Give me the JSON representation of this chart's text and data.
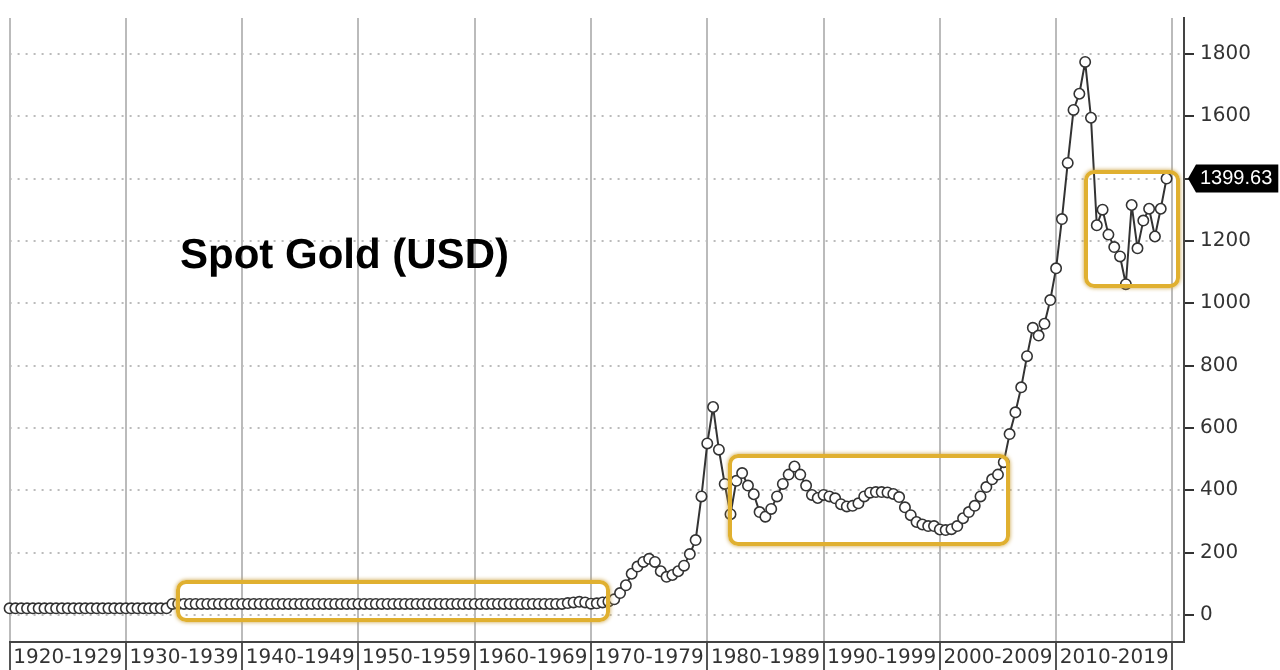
{
  "chart_data": {
    "type": "line",
    "title": "Spot Gold (USD)",
    "categories": [
      null,
      null,
      null,
      null,
      null,
      null,
      null,
      null,
      null,
      null,
      "1920-1929",
      null,
      null,
      null,
      null,
      null,
      null,
      null,
      null,
      null,
      null,
      null,
      null,
      null,
      null,
      null,
      null,
      null,
      null,
      null,
      "1930-1939",
      null,
      null,
      null,
      null,
      null,
      null,
      null,
      null,
      null,
      null,
      null,
      null,
      null,
      null,
      null,
      null,
      null,
      null,
      null,
      "1940-1949",
      null,
      null,
      null,
      null,
      null,
      null,
      null,
      null,
      null,
      null,
      null,
      null,
      null,
      null,
      null,
      null,
      null,
      null,
      null,
      "1950-1959",
      null,
      null,
      null,
      null,
      null,
      null,
      null,
      null,
      null,
      null,
      null,
      null,
      null,
      null,
      null,
      null,
      null,
      null,
      null,
      "1960-1969",
      null,
      null,
      null,
      null,
      null,
      null,
      null,
      null,
      null,
      null,
      null,
      null,
      null,
      null,
      null,
      null,
      null,
      null,
      null,
      "1970-1979",
      null,
      null,
      null,
      null,
      null,
      null,
      null,
      null,
      null,
      null,
      null,
      null,
      null,
      null,
      null,
      null,
      null,
      null,
      null,
      "1980-1989",
      null,
      null,
      null,
      null,
      null,
      null,
      null,
      null,
      null,
      null,
      null,
      null,
      null,
      null,
      null,
      null,
      null,
      null,
      null,
      "1990-1999",
      null,
      null,
      null,
      null,
      null,
      null,
      null,
      null,
      null,
      null,
      null,
      null,
      null,
      null,
      null,
      null,
      null,
      null,
      null,
      "2000-2009",
      null,
      null,
      null,
      null,
      null,
      null,
      null,
      null,
      null,
      null,
      null,
      null,
      null,
      null,
      null,
      null,
      null,
      null,
      null,
      "2010-2019",
      null,
      null,
      null,
      null,
      null,
      null,
      null,
      null,
      null,
      null,
      null,
      null
    ],
    "series": [
      {
        "color": "#333333",
        "values": [
          21,
          21,
          21,
          21,
          21,
          21,
          21,
          21,
          21,
          21,
          21,
          21,
          21,
          21,
          21,
          21,
          21,
          21,
          21,
          21,
          21,
          21,
          21,
          21,
          21,
          21,
          21,
          21,
          35,
          35,
          35,
          35,
          35,
          35,
          35,
          35,
          35,
          35,
          35,
          35,
          35,
          35,
          35,
          35,
          35,
          35,
          35,
          35,
          35,
          35,
          35,
          35,
          35,
          35,
          35,
          35,
          35,
          35,
          35,
          35,
          35,
          35,
          35,
          35,
          35,
          35,
          35,
          35,
          35,
          35,
          35,
          35,
          35,
          35,
          35,
          35,
          35,
          35,
          35,
          35,
          35,
          35,
          35,
          35,
          35,
          35,
          35,
          35,
          35,
          35,
          35,
          35,
          35,
          35,
          35,
          35,
          38,
          40,
          42,
          40,
          36,
          37,
          40,
          43,
          50,
          70,
          95,
          132,
          155,
          170,
          180,
          170,
          140,
          122,
          128,
          140,
          158,
          195,
          240,
          380,
          550,
          667,
          530,
          420,
          323,
          430,
          455,
          415,
          387,
          330,
          315,
          340,
          380,
          420,
          450,
          476,
          450,
          415,
          385,
          375,
          385,
          380,
          374,
          355,
          348,
          350,
          358,
          380,
          392,
          394,
          394,
          393,
          388,
          378,
          345,
          320,
          298,
          290,
          285,
          285,
          274,
          272,
          275,
          285,
          310,
          330,
          350,
          380,
          410,
          435,
          450,
          490,
          580,
          650,
          730,
          830,
          921,
          896,
          934,
          1010,
          1112,
          1270,
          1450,
          1620,
          1672,
          1774,
          1595,
          1250,
          1300,
          1220,
          1180,
          1150,
          1061,
          1315,
          1176,
          1265,
          1303,
          1214,
          1303,
          1400,
          null,
          null,
          null
        ]
      }
    ],
    "ylim": [
      -87,
      1915
    ],
    "yticks": [
      0,
      200,
      400,
      600,
      800,
      1000,
      1200,
      {
        "value": 1400,
        "label": null
      },
      1600,
      1800
    ],
    "annotations": [
      "1399.63"
    ],
    "grid": true,
    "legend": false,
    "marker": "circle",
    "line_style": "solid"
  }
}
